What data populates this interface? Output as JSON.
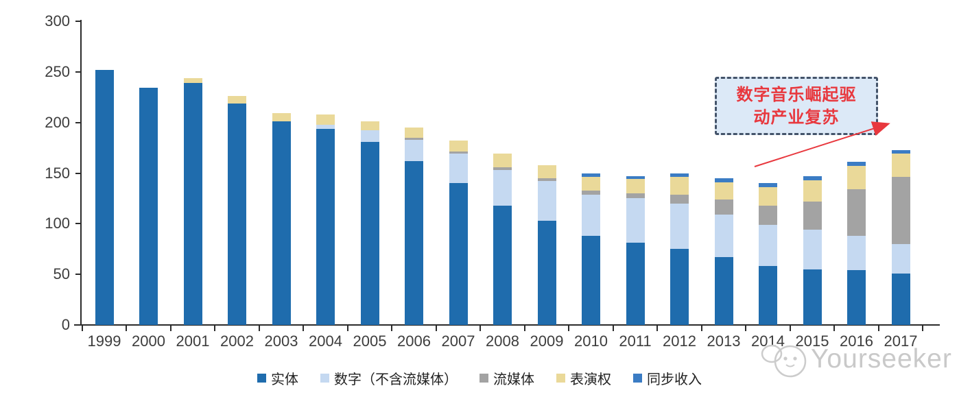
{
  "annotation": {
    "line1": "数字音乐崛起驱",
    "line2": "动产业复苏",
    "text_color": "#E8383E",
    "fill": "#DCE9F7",
    "border_color": "#44546A",
    "arrow_color": "#E8383E"
  },
  "watermark": {
    "text": "Yourseeker",
    "color": "#c9c9c9"
  },
  "chart_data": {
    "type": "bar",
    "stacked": true,
    "title": "",
    "xlabel": "",
    "ylabel": "",
    "grid": false,
    "legend_position": "bottom",
    "ylim": [
      0,
      300
    ],
    "yticks": [
      0,
      50,
      100,
      150,
      200,
      250,
      300
    ],
    "categories": [
      "1999",
      "2000",
      "2001",
      "2002",
      "2003",
      "2004",
      "2005",
      "2006",
      "2007",
      "2008",
      "2009",
      "2010",
      "2011",
      "2012",
      "2013",
      "2014",
      "2015",
      "2016",
      "2017"
    ],
    "series": [
      {
        "name": "实体",
        "color": "#1F6CAD",
        "values": [
          252,
          234,
          239,
          219,
          201,
          194,
          181,
          162,
          140,
          118,
          103,
          88,
          81,
          75,
          67,
          58,
          55,
          54,
          51
        ]
      },
      {
        "name": "数字（不含流媒体）",
        "color": "#C5D9F1",
        "values": [
          0,
          0,
          0,
          0,
          0,
          4,
          11,
          21,
          29,
          35,
          39,
          41,
          44,
          45,
          42,
          41,
          39,
          34,
          29
        ]
      },
      {
        "name": "流媒体",
        "color": "#A3A3A3",
        "values": [
          0,
          0,
          0,
          0,
          0,
          0,
          0,
          2,
          2,
          3,
          3,
          4,
          5,
          9,
          15,
          19,
          28,
          46,
          66
        ]
      },
      {
        "name": "表演权",
        "color": "#EAD999",
        "values": [
          0,
          0,
          5,
          7,
          8,
          10,
          9,
          10,
          11,
          13,
          13,
          13,
          14,
          17,
          17,
          18,
          21,
          23,
          23
        ]
      },
      {
        "name": "同步收入",
        "color": "#3B7CC4",
        "values": [
          0,
          0,
          0,
          0,
          0,
          0,
          0,
          0,
          0,
          0,
          0,
          4,
          3,
          4,
          4,
          4,
          4,
          4,
          4
        ]
      }
    ],
    "axis_color": "#2b2b2b",
    "tick_label_color": "#3d3d3d"
  }
}
